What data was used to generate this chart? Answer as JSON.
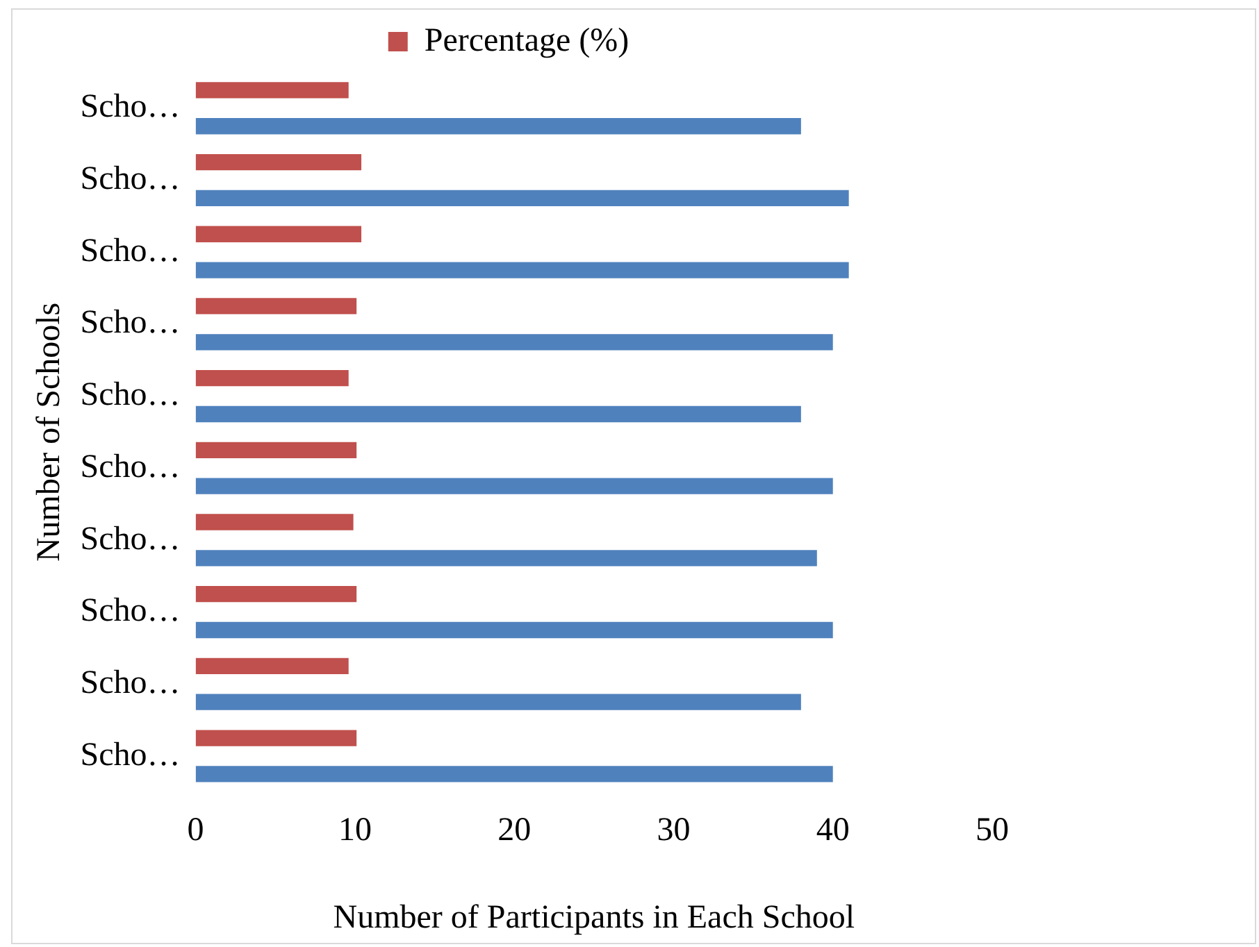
{
  "chart_data": {
    "type": "bar",
    "orientation": "horizontal",
    "xlabel": "Number of Participants in Each School",
    "ylabel": "Number of Schools",
    "categories": [
      "Scho…",
      "Scho…",
      "Scho…",
      "Scho…",
      "Scho…",
      "Scho…",
      "Scho…",
      "Scho…",
      "Scho…",
      "Scho…"
    ],
    "series": [
      {
        "name": "Percentage (%)",
        "color": "#c0504d",
        "values": [
          9.6,
          10.4,
          10.4,
          10.1,
          9.6,
          10.1,
          9.9,
          10.1,
          9.6,
          10.1
        ]
      },
      {
        "color": "#4f81bd",
        "values": [
          38,
          41,
          41,
          40,
          38,
          40,
          39,
          40,
          38,
          40
        ]
      }
    ],
    "xlim": [
      0,
      50
    ],
    "xticks": [
      0,
      10,
      20,
      30,
      40,
      50
    ],
    "grid": false,
    "legend": "top"
  }
}
